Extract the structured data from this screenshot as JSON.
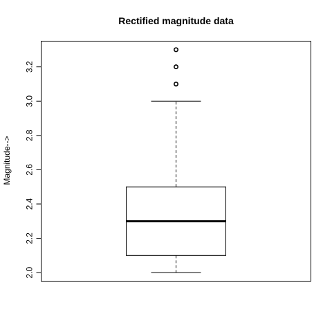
{
  "chart_data": {
    "type": "boxplot",
    "title": "Rectified magnitude data",
    "xlabel": "",
    "ylabel": "Magnitude-->",
    "ylim": [
      1.95,
      3.35
    ],
    "yticks": [
      2.0,
      2.2,
      2.4,
      2.6,
      2.8,
      3.0,
      3.2
    ],
    "ytick_labels": [
      "2.0",
      "2.2",
      "2.4",
      "2.6",
      "2.8",
      "3.0",
      "3.2"
    ],
    "grid": false,
    "box": {
      "whisker_low": 2.0,
      "q1": 2.1,
      "median": 2.3,
      "q3": 2.5,
      "whisker_high": 3.0,
      "outliers": [
        3.1,
        3.2,
        3.3
      ]
    }
  }
}
